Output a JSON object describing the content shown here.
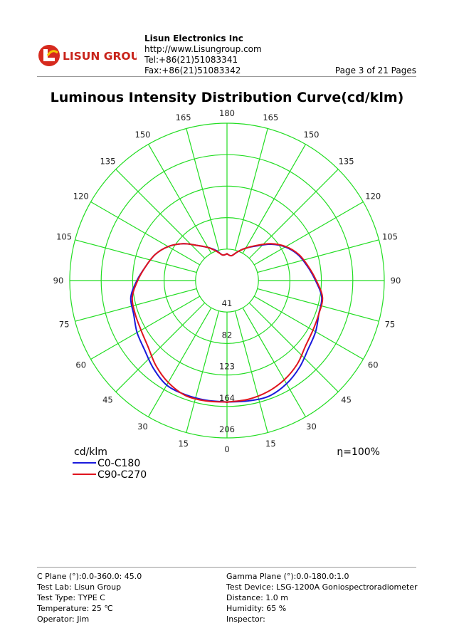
{
  "header": {
    "logo_text": "LISUN GROUP",
    "company": "Lisun Electronics Inc",
    "url": "http://www.Lisungroup.com",
    "tel": "Tel:+86(21)51083341",
    "fax": "Fax:+86(21)51083342",
    "page": "Page 3 of 21 Pages"
  },
  "title": "Luminous Intensity Distribution Curve(cd/klm)",
  "chart_data": {
    "type": "polar",
    "unit_label": "cd/klm",
    "efficiency_label": "η=100%",
    "radial_ticks": [
      "41",
      "82",
      "123",
      "164",
      "206"
    ],
    "radial_max": 206,
    "angle_labels": {
      "bottom": "0",
      "top": "180",
      "left": [
        "15",
        "30",
        "45",
        "60",
        "75",
        "90",
        "105",
        "120",
        "135",
        "150",
        "165"
      ],
      "right": [
        "15",
        "30",
        "45",
        "60",
        "75",
        "90",
        "105",
        "120",
        "135",
        "150",
        "165"
      ]
    },
    "grid_color": "#22dd22",
    "series": [
      {
        "name": "C0-C180",
        "color": "#1a1adc",
        "gamma": [
          0,
          10,
          20,
          30,
          40,
          50,
          60,
          70,
          80,
          90,
          100,
          110,
          120,
          130,
          140,
          150,
          160,
          170,
          180
        ],
        "left": [
          159,
          159,
          159,
          158,
          150,
          141,
          136,
          130,
          128,
          118,
          108,
          100,
          89,
          75,
          60,
          50,
          42,
          34,
          35
        ],
        "right": [
          159,
          160,
          161,
          156,
          148,
          139,
          134,
          128,
          126,
          116,
          107,
          99,
          88,
          74,
          59,
          49,
          40,
          33,
          35
        ]
      },
      {
        "name": "C90-C270",
        "color": "#e0141e",
        "gamma": [
          0,
          10,
          20,
          30,
          40,
          50,
          60,
          70,
          80,
          90,
          100,
          110,
          120,
          130,
          140,
          150,
          160,
          170,
          180
        ],
        "left": [
          159,
          160,
          160,
          154,
          145,
          135,
          130,
          128,
          126,
          117,
          108,
          100,
          89,
          75,
          60,
          50,
          41,
          34,
          35
        ],
        "right": [
          159,
          158,
          155,
          150,
          143,
          134,
          130,
          128,
          127,
          117,
          108,
          100,
          89,
          75,
          60,
          49,
          40,
          33,
          35
        ]
      }
    ]
  },
  "footer": {
    "c_plane": "C Plane (°):0.0-360.0: 45.0",
    "gamma_plane": "Gamma Plane (°):0.0-180.0:1.0",
    "test_lab": "Test Lab: Lisun Group",
    "test_device": "Test Device: LSG-1200A Goniospectroradiometer",
    "test_type": "Test Type: TYPE C",
    "distance": "Distance: 1.0 m",
    "temperature": "Temperature: 25 ℃",
    "humidity": "Humidity: 65 %",
    "operator": "Operator: Jim",
    "inspector": "Inspector:"
  }
}
